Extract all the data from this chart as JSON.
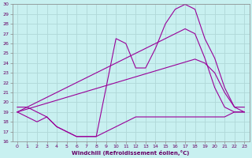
{
  "xlabel": "Windchill (Refroidissement éolien,°C)",
  "bg_color": "#c8f0f0",
  "line_color": "#990099",
  "grid_color": "#b0d8d8",
  "xlim": [
    -0.5,
    23.5
  ],
  "ylim": [
    16,
    30
  ],
  "xticks": [
    0,
    1,
    2,
    3,
    4,
    5,
    6,
    7,
    8,
    9,
    10,
    11,
    12,
    13,
    14,
    15,
    16,
    17,
    18,
    19,
    20,
    21,
    22,
    23
  ],
  "yticks": [
    16,
    17,
    18,
    19,
    20,
    21,
    22,
    23,
    24,
    25,
    26,
    27,
    28,
    29,
    30
  ],
  "line_top_x": [
    0,
    1,
    2,
    3,
    4,
    5,
    6,
    7,
    8,
    9,
    10,
    11,
    12,
    13,
    14,
    15,
    16,
    17,
    18,
    19,
    20,
    21,
    22,
    23
  ],
  "line_top_y": [
    19.5,
    19.5,
    19.0,
    18.5,
    17.5,
    17.0,
    16.5,
    16.5,
    16.5,
    21.5,
    26.5,
    26.0,
    23.5,
    23.5,
    25.5,
    28.0,
    29.5,
    30.0,
    29.5,
    26.5,
    24.5,
    21.5,
    19.5,
    19.5
  ],
  "line_diag1_x": [
    0,
    1,
    2,
    3,
    4,
    5,
    6,
    7,
    8,
    9,
    10,
    11,
    12,
    13,
    14,
    15,
    16,
    17,
    18,
    19,
    20,
    21,
    22,
    23
  ],
  "line_diag1_y": [
    19.0,
    19.5,
    20.0,
    20.5,
    21.0,
    21.5,
    22.0,
    22.5,
    23.0,
    23.5,
    24.0,
    24.5,
    25.0,
    25.5,
    26.0,
    26.5,
    27.0,
    27.5,
    27.0,
    24.5,
    21.5,
    19.5,
    19.0,
    19.0
  ],
  "line_diag2_x": [
    0,
    1,
    2,
    3,
    4,
    5,
    6,
    7,
    8,
    9,
    10,
    11,
    12,
    13,
    14,
    15,
    16,
    17,
    18,
    19,
    20,
    21,
    22,
    23
  ],
  "line_diag2_y": [
    19.0,
    19.3,
    19.6,
    19.9,
    20.2,
    20.5,
    20.8,
    21.1,
    21.4,
    21.7,
    22.0,
    22.3,
    22.6,
    22.9,
    23.2,
    23.5,
    23.8,
    24.1,
    24.4,
    24.0,
    23.0,
    21.0,
    19.5,
    19.0
  ],
  "line_flat_x": [
    0,
    1,
    2,
    3,
    4,
    5,
    6,
    7,
    8,
    9,
    10,
    11,
    12,
    13,
    14,
    15,
    16,
    17,
    18,
    19,
    20,
    21,
    22,
    23
  ],
  "line_flat_y": [
    19.0,
    18.5,
    18.0,
    18.5,
    17.5,
    17.0,
    16.5,
    16.5,
    16.5,
    17.0,
    17.5,
    18.0,
    18.5,
    18.5,
    18.5,
    18.5,
    18.5,
    18.5,
    18.5,
    18.5,
    18.5,
    18.5,
    19.0,
    19.0
  ]
}
